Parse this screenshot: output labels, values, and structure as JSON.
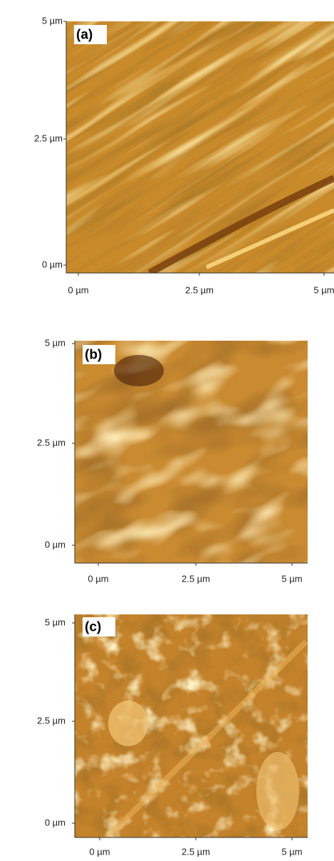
{
  "panels": [
    {
      "label": "(a)",
      "y_tick_labels": [
        "5 µm",
        "2.5 µm",
        "0 µm"
      ],
      "x_tick_labels": [
        "0 µm",
        "2.5 µm",
        "5 µm"
      ]
    },
    {
      "label": "(b)",
      "y_tick_labels": [
        "5 µm",
        "2.5 µm",
        "0 µm"
      ],
      "x_tick_labels": [
        "0 µm",
        "2.5 µm",
        "5 µm"
      ]
    },
    {
      "label": "(c)",
      "y_tick_labels": [
        "5 µm",
        "2.5 µm",
        "0 µm"
      ],
      "x_tick_labels": [
        "0 µm",
        "2.5 µm",
        "5 µm"
      ]
    }
  ]
}
